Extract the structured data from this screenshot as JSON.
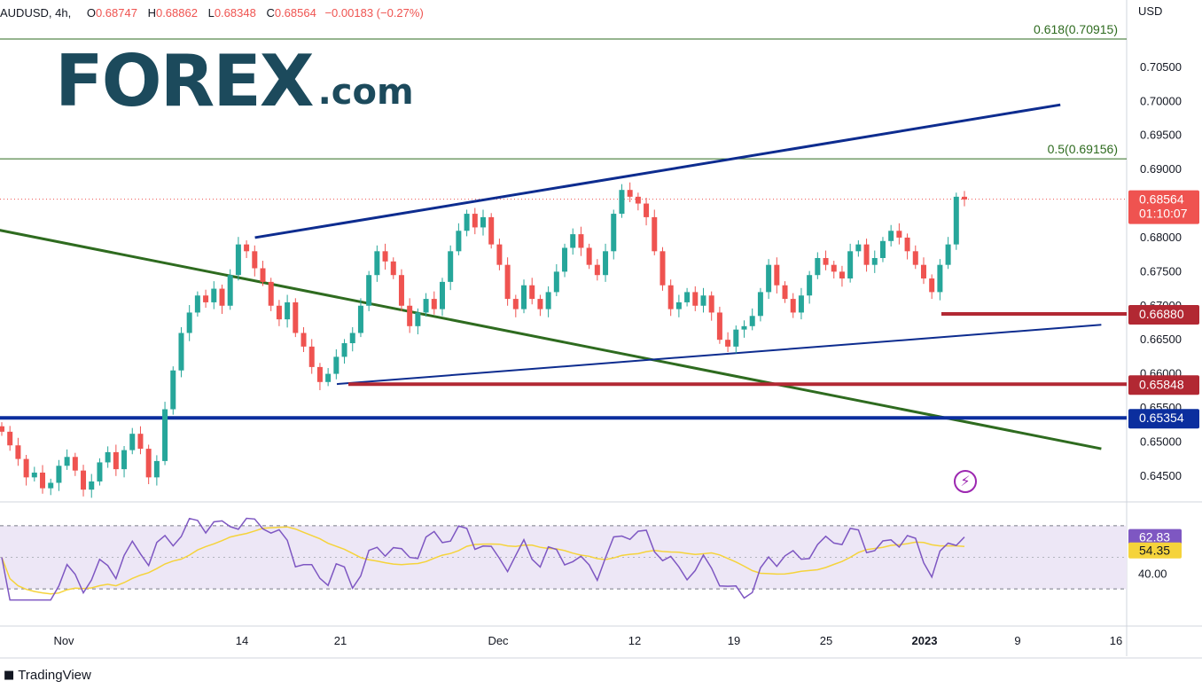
{
  "header": {
    "symbol": "AUDUSD, 4h,",
    "o_label": "O",
    "o_value": "0.68747",
    "h_label": "H",
    "h_value": "0.68862",
    "l_label": "L",
    "l_value": "0.68348",
    "c_label": "C",
    "c_value": "0.68564",
    "change": "−0.00183 (−0.27%)"
  },
  "currency": "USD",
  "logo": {
    "main": "FOREX",
    "suffix": ".com"
  },
  "footer_brand": "TradingView",
  "colors": {
    "up": "#26a69a",
    "down": "#ef5350",
    "channel": "#0d2c8f",
    "trendline": "#2e6b1f",
    "support": "#b22833",
    "support_strong": "#0b2e9e",
    "rsi": "#7e57c2",
    "rsi_ma": "#f5d33b",
    "rsi_band": "#ede7f6"
  },
  "icons": {
    "flash": "lightning-icon"
  },
  "chart_data": {
    "type": "candlestick",
    "symbol": "AUDUSD",
    "timeframe": "4h",
    "ylim": [
      0.6425,
      0.7115
    ],
    "price_ticks": [
      "0.70500",
      "0.70000",
      "0.69500",
      "0.69000",
      "0.68000",
      "0.67500",
      "0.67000",
      "0.66500",
      "0.66000",
      "0.65500",
      "0.65000",
      "0.64500"
    ],
    "x_ticks": [
      "Nov",
      "14",
      "21",
      "Dec",
      "12",
      "19",
      "25",
      "2023",
      "9",
      "16"
    ],
    "last_price": {
      "value": "0.68564",
      "countdown": "01:10:07"
    },
    "fib_levels": [
      {
        "label": "0.618(0.70915)",
        "price": 0.70915
      },
      {
        "label": "0.5(0.69156)",
        "price": 0.69156
      }
    ],
    "horizontal_levels": [
      {
        "label": "0.66880",
        "price": 0.6688
      },
      {
        "label": "0.65848",
        "price": 0.65848
      },
      {
        "label": "0.65354",
        "price": 0.65354
      }
    ],
    "channel_upper": {
      "from": {
        "date": "Nov 15",
        "price": 0.68
      },
      "to": {
        "date": "Jan 13",
        "price": 0.6995
      }
    },
    "channel_lower": {
      "from": {
        "date": "Nov 21",
        "price": 0.6585
      },
      "to": {
        "date": "Jan 16",
        "price": 0.6672
      }
    },
    "trendline": {
      "from": {
        "date": "Oct 25",
        "price": 0.682
      },
      "to": {
        "date": "Jan 16",
        "price": 0.649
      }
    },
    "closes": [
      0.6515,
      0.6495,
      0.6475,
      0.6448,
      0.6455,
      0.6432,
      0.644,
      0.6465,
      0.6478,
      0.6458,
      0.643,
      0.6442,
      0.647,
      0.6485,
      0.646,
      0.6488,
      0.6512,
      0.649,
      0.6448,
      0.6472,
      0.6548,
      0.6605,
      0.666,
      0.669,
      0.6715,
      0.6705,
      0.6725,
      0.67,
      0.6745,
      0.679,
      0.678,
      0.6755,
      0.6735,
      0.67,
      0.668,
      0.6705,
      0.666,
      0.664,
      0.661,
      0.6588,
      0.66,
      0.6625,
      0.6645,
      0.666,
      0.67,
      0.6745,
      0.678,
      0.6765,
      0.6745,
      0.67,
      0.667,
      0.669,
      0.671,
      0.6695,
      0.6735,
      0.678,
      0.681,
      0.6835,
      0.6815,
      0.683,
      0.679,
      0.676,
      0.671,
      0.6695,
      0.673,
      0.671,
      0.6695,
      0.672,
      0.675,
      0.6785,
      0.6805,
      0.6785,
      0.676,
      0.6745,
      0.678,
      0.6835,
      0.687,
      0.686,
      0.685,
      0.683,
      0.678,
      0.673,
      0.6695,
      0.6705,
      0.672,
      0.67,
      0.6715,
      0.669,
      0.665,
      0.664,
      0.6665,
      0.667,
      0.6685,
      0.672,
      0.676,
      0.673,
      0.671,
      0.669,
      0.6715,
      0.6745,
      0.677,
      0.676,
      0.675,
      0.674,
      0.678,
      0.679,
      0.676,
      0.677,
      0.6795,
      0.681,
      0.68,
      0.678,
      0.676,
      0.674,
      0.672,
      0.676,
      0.679,
      0.686,
      0.6856
    ],
    "rsi": {
      "value_label": "62.83",
      "ma_label": "54.35",
      "tick_label": "40.00",
      "ylim": [
        20,
        80
      ],
      "upper_band": 70,
      "lower_band": 30
    }
  }
}
